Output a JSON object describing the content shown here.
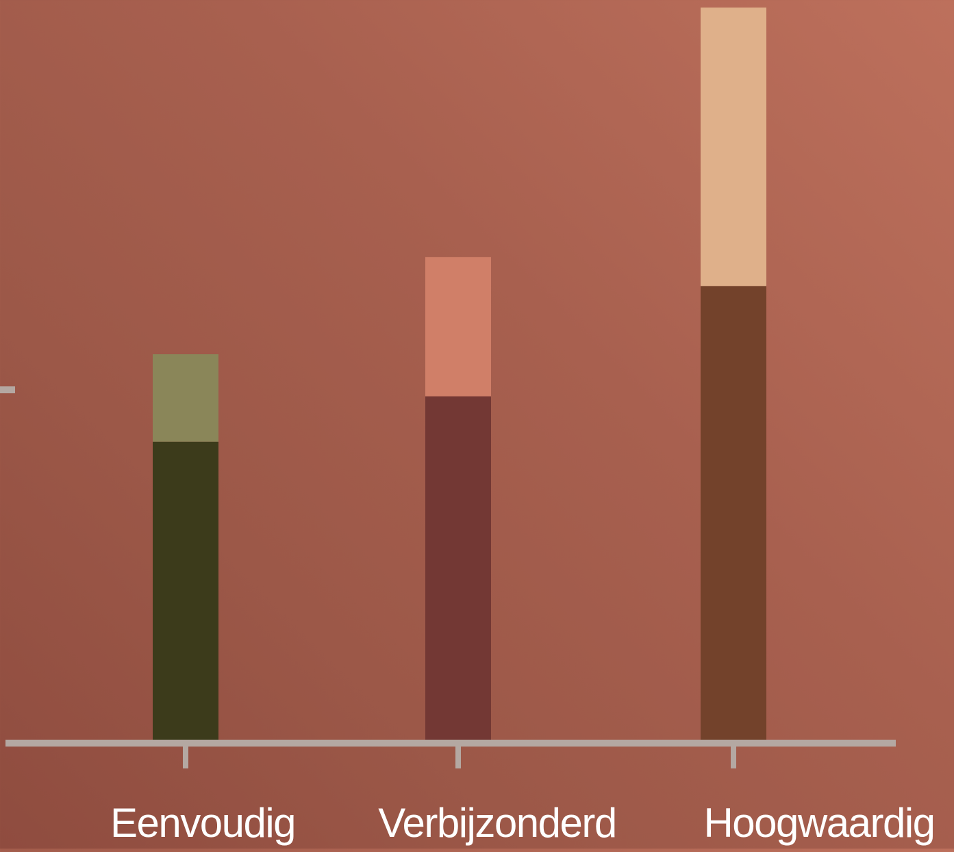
{
  "chart_data": {
    "type": "bar",
    "stacked": true,
    "categories": [
      "Eenvoudig",
      "Verbijzonderd",
      "Hoogwaardig"
    ],
    "series": [
      {
        "values": [
          4.6,
          5.3,
          7.0
        ]
      },
      {
        "values": [
          1.35,
          2.15,
          4.3
        ]
      }
    ],
    "bar_colors": [
      [
        "#3c3b1b",
        "#8a8659"
      ],
      [
        "#733834",
        "#d07f68"
      ],
      [
        "#73422b",
        "#dfb08a"
      ]
    ],
    "axis_color": "#b4a8a2",
    "label_color": "#ffffff",
    "ylim": [
      0,
      11.3
    ],
    "yticks": [
      5.4
    ],
    "grid": false,
    "legend": "none",
    "title": "",
    "xlabel": "",
    "ylabel": ""
  }
}
